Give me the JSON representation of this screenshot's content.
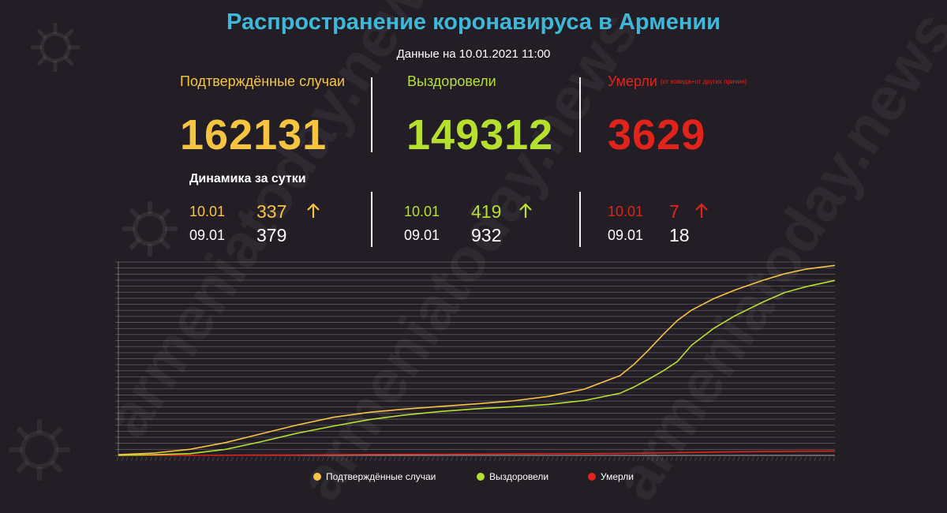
{
  "header": {
    "title": "Распространение коронавируса в Армении",
    "subtitle": "Данные на 10.01.2021 11:00"
  },
  "stats": {
    "confirmed": {
      "label": "Подтверждённые случаи",
      "value": "162131",
      "color": "#f5c542"
    },
    "recovered": {
      "label": "Выздоровели",
      "value": "149312",
      "color": "#b5e02e"
    },
    "deaths": {
      "label": "Умерли",
      "note": "(от ковида+от других причин)",
      "value": "3629",
      "color": "#e0241b"
    }
  },
  "dynamics": {
    "title": "Динамика за сутки",
    "confirmed": {
      "today_date": "10.01",
      "today_value": "337",
      "prev_date": "09.01",
      "prev_value": "379"
    },
    "recovered": {
      "today_date": "10.01",
      "today_value": "419",
      "prev_date": "09.01",
      "prev_value": "932"
    },
    "deaths": {
      "today_date": "10.01",
      "today_value": "7",
      "prev_date": "09.01",
      "prev_value": "18"
    },
    "arrow_icon": "up-arrow-icon"
  },
  "watermark": "armeniatoday.news",
  "chart_data": {
    "type": "line",
    "grid": true,
    "ylim": [
      0,
      165000
    ],
    "x": [
      0,
      0.05,
      0.1,
      0.15,
      0.2,
      0.25,
      0.3,
      0.35,
      0.4,
      0.45,
      0.5,
      0.55,
      0.6,
      0.65,
      0.7,
      0.72,
      0.74,
      0.76,
      0.78,
      0.8,
      0.83,
      0.86,
      0.9,
      0.93,
      0.96,
      1.0
    ],
    "series": [
      {
        "name": "Подтверждённые случаи",
        "color": "#f5c542",
        "values": [
          700,
          2000,
          5200,
          11000,
          18500,
          26000,
          32500,
          36800,
          39500,
          41800,
          44000,
          46500,
          50300,
          56500,
          68000,
          78000,
          90000,
          103000,
          115000,
          124000,
          133500,
          141000,
          149500,
          155000,
          159000,
          162131
        ]
      },
      {
        "name": "Выздоровели",
        "color": "#b5e02e",
        "values": [
          100,
          600,
          1500,
          5200,
          11800,
          19000,
          25000,
          30500,
          34500,
          37500,
          39800,
          41500,
          43500,
          46800,
          53000,
          58500,
          65000,
          72000,
          80000,
          94000,
          108000,
          119000,
          131000,
          139000,
          144000,
          149312
        ]
      },
      {
        "name": "Умерли",
        "color": "#e0241b",
        "values": [
          0,
          20,
          60,
          120,
          250,
          400,
          600,
          800,
          900,
          1000,
          1100,
          1200,
          1350,
          1450,
          1700,
          1800,
          1950,
          2150,
          2300,
          2500,
          2800,
          3050,
          3300,
          3450,
          3550,
          3629
        ]
      }
    ]
  }
}
